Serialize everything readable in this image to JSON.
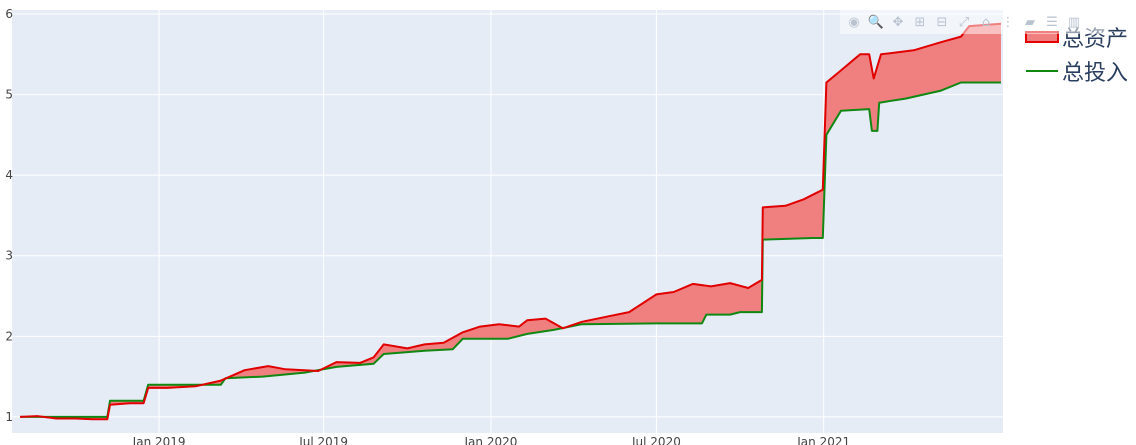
{
  "chart_data": {
    "type": "area",
    "title": "",
    "xlabel": "",
    "ylabel": "",
    "xlim": [
      "2018-08-01",
      "2021-07-15"
    ],
    "ylim": [
      0.8,
      6.05
    ],
    "x_ticks": [
      {
        "date": "2019-01-01",
        "label": "Jan 2019"
      },
      {
        "date": "2019-07-01",
        "label": "Jul 2019"
      },
      {
        "date": "2020-01-01",
        "label": "Jan 2020"
      },
      {
        "date": "2020-07-01",
        "label": "Jul 2020"
      },
      {
        "date": "2021-01-01",
        "label": "Jan 2021"
      }
    ],
    "y_ticks": [
      1,
      2,
      3,
      4,
      5,
      6
    ],
    "grid": true,
    "legend_position": "right",
    "fill_between_series": true,
    "fill_color": "#f08080",
    "series": [
      {
        "name": "总资产",
        "color": "#e00000",
        "points": [
          [
            "2018-08-01",
            1.0
          ],
          [
            "2018-08-20",
            1.01
          ],
          [
            "2018-09-10",
            0.98
          ],
          [
            "2018-10-01",
            0.98
          ],
          [
            "2018-10-20",
            0.97
          ],
          [
            "2018-11-05",
            0.97
          ],
          [
            "2018-11-08",
            1.15
          ],
          [
            "2018-11-30",
            1.17
          ],
          [
            "2018-12-15",
            1.17
          ],
          [
            "2018-12-20",
            1.36
          ],
          [
            "2019-01-10",
            1.36
          ],
          [
            "2019-02-10",
            1.38
          ],
          [
            "2019-03-10",
            1.45
          ],
          [
            "2019-04-05",
            1.58
          ],
          [
            "2019-05-01",
            1.63
          ],
          [
            "2019-05-20",
            1.59
          ],
          [
            "2019-06-10",
            1.58
          ],
          [
            "2019-06-25",
            1.57
          ],
          [
            "2019-07-15",
            1.68
          ],
          [
            "2019-08-10",
            1.67
          ],
          [
            "2019-08-25",
            1.74
          ],
          [
            "2019-09-05",
            1.9
          ],
          [
            "2019-10-01",
            1.85
          ],
          [
            "2019-10-20",
            1.9
          ],
          [
            "2019-11-10",
            1.92
          ],
          [
            "2019-12-01",
            2.05
          ],
          [
            "2019-12-20",
            2.12
          ],
          [
            "2020-01-10",
            2.15
          ],
          [
            "2020-02-01",
            2.12
          ],
          [
            "2020-02-10",
            2.2
          ],
          [
            "2020-03-01",
            2.22
          ],
          [
            "2020-03-20",
            2.1
          ],
          [
            "2020-04-10",
            2.18
          ],
          [
            "2020-05-10",
            2.25
          ],
          [
            "2020-06-01",
            2.3
          ],
          [
            "2020-07-01",
            2.52
          ],
          [
            "2020-07-20",
            2.55
          ],
          [
            "2020-08-10",
            2.65
          ],
          [
            "2020-08-30",
            2.62
          ],
          [
            "2020-09-20",
            2.66
          ],
          [
            "2020-10-10",
            2.6
          ],
          [
            "2020-10-25",
            2.7
          ],
          [
            "2020-10-26",
            3.6
          ],
          [
            "2020-11-20",
            3.62
          ],
          [
            "2020-12-10",
            3.7
          ],
          [
            "2020-12-31",
            3.82
          ],
          [
            "2021-01-04",
            5.15
          ],
          [
            "2021-01-20",
            5.3
          ],
          [
            "2021-02-10",
            5.5
          ],
          [
            "2021-02-20",
            5.5
          ],
          [
            "2021-02-25",
            5.2
          ],
          [
            "2021-03-05",
            5.5
          ],
          [
            "2021-04-10",
            5.55
          ],
          [
            "2021-05-10",
            5.65
          ],
          [
            "2021-06-01",
            5.72
          ],
          [
            "2021-06-10",
            5.85
          ],
          [
            "2021-07-15",
            5.88
          ]
        ]
      },
      {
        "name": "总投入",
        "color": "#118811",
        "points": [
          [
            "2018-08-01",
            1.0
          ],
          [
            "2018-11-05",
            1.0
          ],
          [
            "2018-11-08",
            1.2
          ],
          [
            "2018-12-15",
            1.2
          ],
          [
            "2018-12-20",
            1.4
          ],
          [
            "2019-03-10",
            1.4
          ],
          [
            "2019-03-15",
            1.48
          ],
          [
            "2019-04-25",
            1.5
          ],
          [
            "2019-06-10",
            1.55
          ],
          [
            "2019-07-15",
            1.62
          ],
          [
            "2019-08-25",
            1.66
          ],
          [
            "2019-09-05",
            1.78
          ],
          [
            "2019-10-20",
            1.82
          ],
          [
            "2019-11-20",
            1.84
          ],
          [
            "2019-12-01",
            1.97
          ],
          [
            "2020-01-20",
            1.97
          ],
          [
            "2020-02-10",
            2.03
          ],
          [
            "2020-03-10",
            2.08
          ],
          [
            "2020-04-10",
            2.15
          ],
          [
            "2020-07-01",
            2.16
          ],
          [
            "2020-08-20",
            2.16
          ],
          [
            "2020-08-25",
            2.27
          ],
          [
            "2020-09-20",
            2.27
          ],
          [
            "2020-10-01",
            2.3
          ],
          [
            "2020-10-25",
            2.3
          ],
          [
            "2020-10-26",
            3.2
          ],
          [
            "2020-12-20",
            3.22
          ],
          [
            "2020-12-31",
            3.22
          ],
          [
            "2021-01-04",
            4.5
          ],
          [
            "2021-01-20",
            4.8
          ],
          [
            "2021-02-20",
            4.82
          ],
          [
            "2021-02-23",
            4.55
          ],
          [
            "2021-03-01",
            4.55
          ],
          [
            "2021-03-03",
            4.9
          ],
          [
            "2021-04-01",
            4.95
          ],
          [
            "2021-05-10",
            5.05
          ],
          [
            "2021-06-01",
            5.15
          ],
          [
            "2021-07-15",
            5.15
          ]
        ]
      }
    ]
  },
  "modebar": {
    "buttons": [
      {
        "icon": "camera-icon",
        "glyph": "◉"
      },
      {
        "icon": "zoom-icon",
        "glyph": "🔍"
      },
      {
        "icon": "pan-icon",
        "glyph": "✥"
      },
      {
        "icon": "zoom-in-icon",
        "glyph": "⊞"
      },
      {
        "icon": "zoom-out-icon",
        "glyph": "⊟"
      },
      {
        "icon": "autoscale-icon",
        "glyph": "⤢"
      },
      {
        "icon": "reset-axes-icon",
        "glyph": "⌂"
      },
      {
        "icon": "spike-lines-icon",
        "glyph": "⋮"
      },
      {
        "icon": "hover-closest-icon",
        "glyph": "▰"
      },
      {
        "icon": "hover-compare-icon",
        "glyph": "☰"
      },
      {
        "icon": "plotly-logo-icon",
        "glyph": "▥"
      }
    ]
  }
}
